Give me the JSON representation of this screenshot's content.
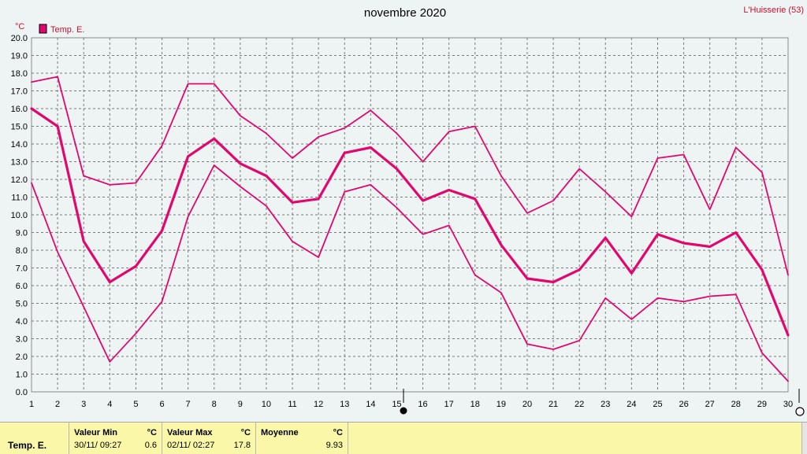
{
  "chart_data": {
    "type": "line",
    "title": "novembre 2020",
    "station": "L'Huisserie (53)",
    "ylabel": "°C",
    "ylim": [
      0.0,
      20.0
    ],
    "ytick_labels": [
      "0.0",
      "1.0",
      "2.0",
      "3.0",
      "4.0",
      "5.0",
      "6.0",
      "7.0",
      "8.0",
      "9.0",
      "10.0",
      "11.0",
      "12.0",
      "13.0",
      "14.0",
      "15.0",
      "16.0",
      "17.0",
      "18.0",
      "19.0",
      "20.0"
    ],
    "categories": [
      "1",
      "2",
      "3",
      "4",
      "5",
      "6",
      "7",
      "8",
      "9",
      "10",
      "11",
      "12",
      "13",
      "14",
      "15",
      "16",
      "17",
      "18",
      "19",
      "20",
      "21",
      "22",
      "23",
      "24",
      "25",
      "26",
      "27",
      "28",
      "29",
      "30"
    ],
    "legend": "Temp. E.",
    "color": "#e0086c",
    "grid": true,
    "series": [
      {
        "role": "max",
        "values": [
          17.5,
          17.8,
          12.2,
          11.7,
          11.8,
          13.9,
          17.4,
          17.4,
          15.6,
          14.6,
          13.2,
          14.4,
          14.9,
          15.9,
          14.6,
          13.0,
          14.7,
          15.0,
          12.2,
          10.1,
          10.8,
          12.6,
          11.3,
          9.9,
          13.2,
          13.4,
          10.3,
          13.8,
          12.4,
          6.6
        ]
      },
      {
        "role": "mean",
        "values": [
          16.0,
          15.0,
          8.5,
          6.2,
          7.1,
          9.1,
          13.3,
          14.3,
          12.9,
          12.2,
          10.7,
          10.9,
          13.5,
          13.8,
          12.6,
          10.8,
          11.4,
          10.9,
          8.3,
          6.4,
          6.2,
          6.9,
          8.7,
          6.7,
          8.9,
          8.4,
          8.2,
          9.0,
          6.9,
          3.2
        ]
      },
      {
        "role": "min",
        "values": [
          11.8,
          7.9,
          4.8,
          1.7,
          3.3,
          5.1,
          9.9,
          12.8,
          11.6,
          10.5,
          8.5,
          7.6,
          11.3,
          11.7,
          10.4,
          8.9,
          9.4,
          6.6,
          5.6,
          2.7,
          2.4,
          2.9,
          5.3,
          4.1,
          5.3,
          5.1,
          5.4,
          5.5,
          2.2,
          0.6
        ]
      }
    ]
  },
  "stats": {
    "row_label": "Temp. E.",
    "min_label": "Valeur Min",
    "min_unit": "°C",
    "min_date": "30/11/  09:27",
    "min_value": "0.6",
    "max_label": "Valeur Max",
    "max_unit": "°C",
    "max_date": "02/11/  02:27",
    "max_value": "17.8",
    "mean_label": "Moyenne",
    "mean_unit": "°C",
    "mean_value": "9.93"
  }
}
